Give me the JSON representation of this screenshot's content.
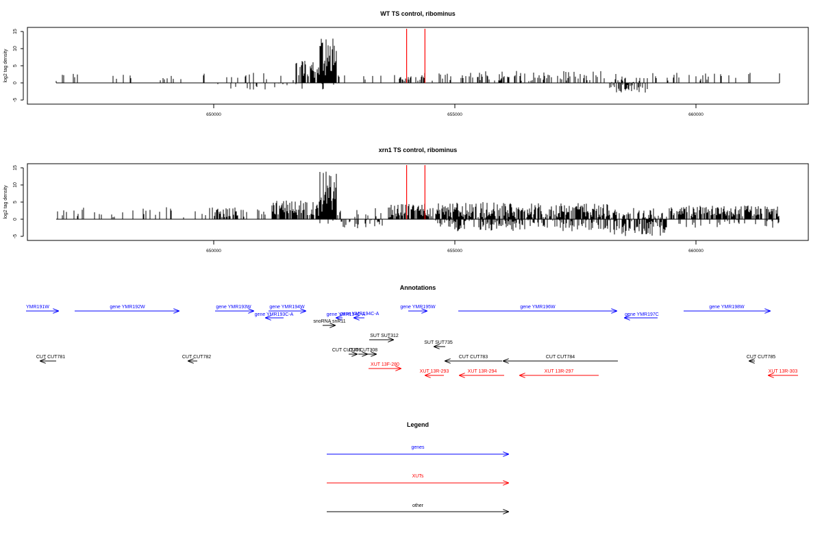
{
  "chart_data": [
    {
      "type": "bar",
      "title": "WT TS control, ribominus",
      "ylabel": "log2 tag density",
      "xlabel": "",
      "xlim": [
        646300,
        662000
      ],
      "ylim": [
        -5,
        15
      ],
      "yticks": [
        "-5",
        "0",
        "5",
        "10",
        "15"
      ],
      "xticks": [
        "650000",
        "655000",
        "660000"
      ],
      "marker_lines_x": [
        654000,
        654380
      ],
      "marker_color": "#ff0000",
      "bar_color": "#000000",
      "profile": "wt"
    },
    {
      "type": "bar",
      "title": "xrn1 TS control, ribominus",
      "ylabel": "log2 tag density",
      "xlabel": "",
      "xlim": [
        646300,
        662000
      ],
      "ylim": [
        -5,
        15
      ],
      "yticks": [
        "-5",
        "0",
        "5",
        "10",
        "15"
      ],
      "xticks": [
        "650000",
        "655000",
        "660000"
      ],
      "marker_lines_x": [
        654000,
        654380
      ],
      "marker_color": "#ff0000",
      "bar_color": "#000000",
      "profile": "xrn1"
    }
  ],
  "annotations": {
    "title": "Annotations",
    "colors": {
      "genes": "#0000ff",
      "xuts": "#ff0000",
      "other": "#000000"
    },
    "items": [
      {
        "label": "YMR191W",
        "kind": "genes"
      },
      {
        "label": "gene YMR192W",
        "kind": "genes"
      },
      {
        "label": "gene YMR193W",
        "kind": "genes"
      },
      {
        "label": "gene YMR194W",
        "kind": "genes"
      },
      {
        "label": "gene YMR193C-A",
        "kind": "genes"
      },
      {
        "label": "gene YMR194C-A",
        "kind": "genes"
      },
      {
        "label": "gene YMR194C-A",
        "kind": "genes"
      },
      {
        "label": "gene YMR195W",
        "kind": "genes"
      },
      {
        "label": "gene YMR196W",
        "kind": "genes"
      },
      {
        "label": "gene YMR197C",
        "kind": "genes"
      },
      {
        "label": "gene YMR198W",
        "kind": "genes"
      },
      {
        "label": "snoRNA snR11",
        "kind": "other"
      },
      {
        "label": "SUT SUT312",
        "kind": "other"
      },
      {
        "label": "SUT SUT735",
        "kind": "other"
      },
      {
        "label": "CUT CUT781",
        "kind": "other"
      },
      {
        "label": "CUT CUT782",
        "kind": "other"
      },
      {
        "label": "CUT CUT306",
        "kind": "other"
      },
      {
        "label": "CUT CUT308",
        "kind": "other"
      },
      {
        "label": "CUT CUT783",
        "kind": "other"
      },
      {
        "label": "CUT CUT784",
        "kind": "other"
      },
      {
        "label": "CUT CUT785",
        "kind": "other"
      },
      {
        "label": "XUT 13F-280",
        "kind": "xuts"
      },
      {
        "label": "XUT 13R-293",
        "kind": "xuts"
      },
      {
        "label": "XUT 13R-294",
        "kind": "xuts"
      },
      {
        "label": "XUT 13R-297",
        "kind": "xuts"
      },
      {
        "label": "XUT 13R-303",
        "kind": "xuts"
      }
    ]
  },
  "legend": {
    "title": "Legend",
    "entries": [
      {
        "label": "genes",
        "color": "#0000ff"
      },
      {
        "label": "XUTs",
        "color": "#ff0000"
      },
      {
        "label": "other",
        "color": "#000000"
      }
    ]
  }
}
